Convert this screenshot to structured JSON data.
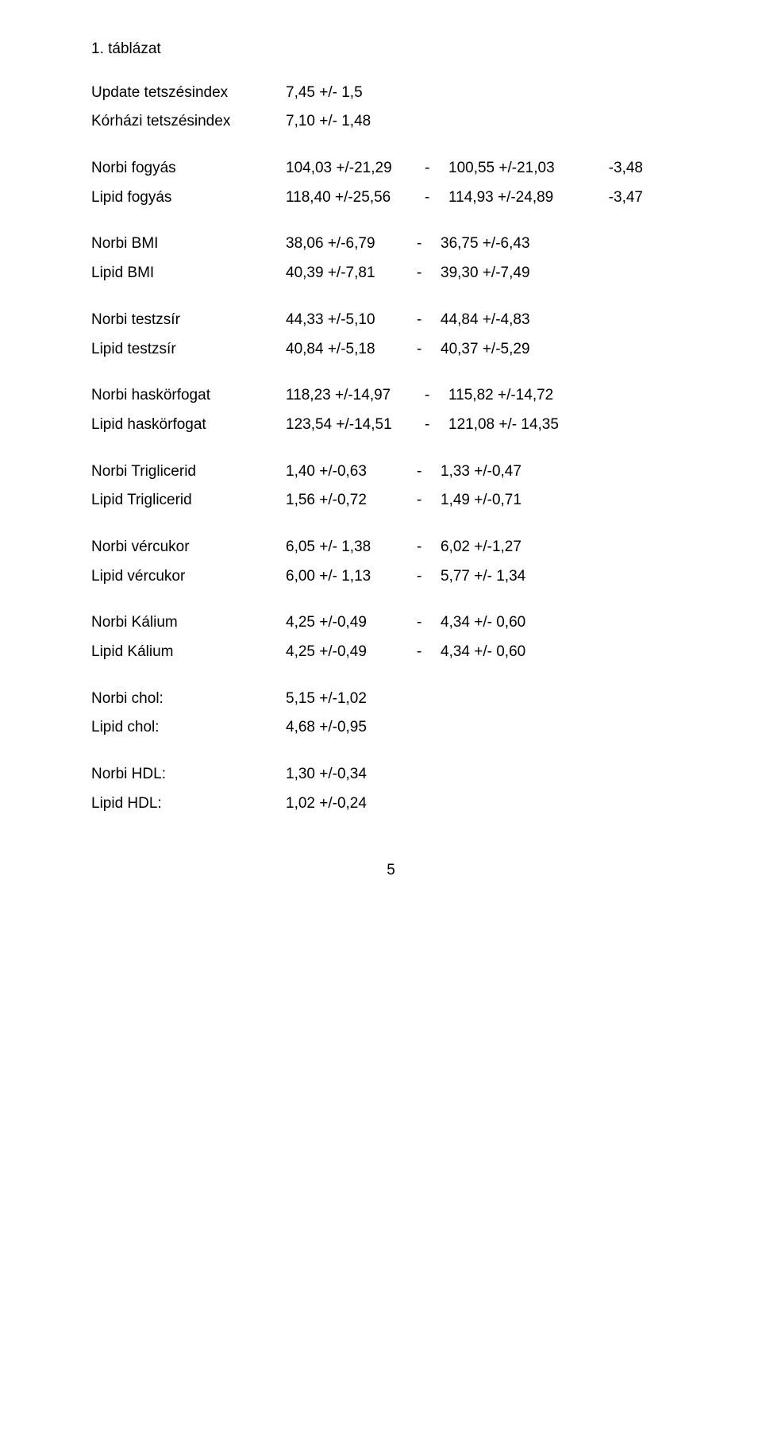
{
  "title": "1. táblázat",
  "tetszes": {
    "rows": [
      {
        "label": "Update tetszésindex",
        "v1": "7,45 +/- 1,5"
      },
      {
        "label": "Kórházi tetszésindex",
        "v1": "7,10 +/- 1,48"
      }
    ]
  },
  "fogyas": {
    "rows": [
      {
        "label": "Norbi fogyás",
        "v1": "104,03 +/-21,29",
        "dash": "-",
        "v2": "100,55 +/-21,03",
        "d": "-3,48"
      },
      {
        "label": "Lipid fogyás",
        "v1": "118,40 +/-25,56",
        "dash": "-",
        "v2": "114,93 +/-24,89",
        "d": "-3,47"
      }
    ]
  },
  "bmi": {
    "rows": [
      {
        "label": "Norbi BMI",
        "v1": "38,06 +/-6,79",
        "dash": "-",
        "v2": "36,75 +/-6,43"
      },
      {
        "label": "Lipid BMI",
        "v1": "40,39 +/-7,81",
        "dash": "-",
        "v2": "39,30 +/-7,49"
      }
    ]
  },
  "testzsir": {
    "rows": [
      {
        "label": "Norbi testzsír",
        "v1": "44,33 +/-5,10",
        "dash": "-",
        "v2": "44,84 +/-4,83"
      },
      {
        "label": "Lipid testzsír",
        "v1": "40,84 +/-5,18",
        "dash": "-",
        "v2": "40,37 +/-5,29"
      }
    ]
  },
  "haskor": {
    "rows": [
      {
        "label": "Norbi haskörfogat",
        "v1": "118,23 +/-14,97",
        "dash": "-",
        "v2": "115,82 +/-14,72"
      },
      {
        "label": "Lipid haskörfogat",
        "v1": "123,54 +/-14,51",
        "dash": "-",
        "v2": "121,08 +/- 14,35"
      }
    ]
  },
  "triglicerid": {
    "rows": [
      {
        "label": "Norbi Triglicerid",
        "v1": "1,40 +/-0,63",
        "dash": "-",
        "v2": "1,33 +/-0,47"
      },
      {
        "label": "Lipid Triglicerid",
        "v1": "1,56 +/-0,72",
        "dash": "-",
        "v2": "1,49 +/-0,71"
      }
    ]
  },
  "vercukor": {
    "rows": [
      {
        "label": "Norbi vércukor",
        "v1": "6,05 +/- 1,38",
        "dash": "-",
        "v2": "6,02 +/-1,27"
      },
      {
        "label": "Lipid vércukor",
        "v1": "6,00 +/- 1,13",
        "dash": "-",
        "v2": "5,77 +/- 1,34"
      }
    ]
  },
  "kalium": {
    "rows": [
      {
        "label": "Norbi Kálium",
        "v1": "4,25 +/-0,49",
        "dash": "-",
        "v2": "4,34 +/- 0,60"
      },
      {
        "label": "Lipid Kálium",
        "v1": "4,25 +/-0,49",
        "dash": "-",
        "v2": "4,34 +/- 0,60"
      }
    ]
  },
  "chol": {
    "rows": [
      {
        "label": "Norbi chol:",
        "v1": "5,15 +/-1,02"
      },
      {
        "label": "Lipid chol:",
        "v1": "4,68 +/-0,95"
      }
    ]
  },
  "hdl": {
    "rows": [
      {
        "label": "Norbi HDL:",
        "v1": "1,30 +/-0,34"
      },
      {
        "label": "Lipid HDL:",
        "v1": "1,02 +/-0,24"
      }
    ]
  },
  "page_number": "5"
}
